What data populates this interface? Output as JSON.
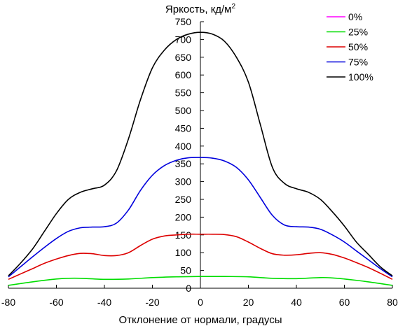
{
  "chart_data": {
    "type": "line",
    "ylabel_main": "Яркость, кд/м",
    "ylabel_sup": "2",
    "xlabel": "Отклонение от нормали, градусы",
    "xlim": [
      -80,
      80
    ],
    "ylim": [
      0,
      750
    ],
    "xticks": [
      -80,
      -60,
      -40,
      -20,
      0,
      20,
      40,
      60,
      80
    ],
    "yticks": [
      0,
      50,
      100,
      150,
      200,
      250,
      300,
      350,
      400,
      450,
      500,
      550,
      600,
      650,
      700,
      750
    ],
    "grid": false,
    "legend_position": "top-right",
    "series": [
      {
        "name": "0%",
        "color": "#ff00ff",
        "x": [
          -80,
          80
        ],
        "y": [
          0,
          0
        ]
      },
      {
        "name": "25%",
        "color": "#00dd00",
        "x": [
          -80,
          -70,
          -60,
          -55,
          -50,
          -40,
          -30,
          -20,
          -10,
          0,
          10,
          20,
          30,
          40,
          50,
          55,
          60,
          70,
          80
        ],
        "y": [
          8,
          18,
          26,
          28,
          28,
          25,
          26,
          30,
          32,
          33,
          33,
          32,
          28,
          27,
          30,
          29,
          26,
          18,
          8
        ]
      },
      {
        "name": "50%",
        "color": "#dd0000",
        "x": [
          -80,
          -75,
          -70,
          -65,
          -60,
          -55,
          -50,
          -45,
          -40,
          -35,
          -30,
          -25,
          -20,
          -15,
          -10,
          -5,
          0,
          5,
          10,
          15,
          20,
          25,
          30,
          35,
          40,
          45,
          50,
          55,
          60,
          65,
          70,
          75,
          80
        ],
        "y": [
          25,
          40,
          55,
          70,
          82,
          92,
          98,
          97,
          92,
          92,
          100,
          120,
          138,
          147,
          150,
          152,
          152,
          152,
          151,
          145,
          130,
          112,
          97,
          93,
          94,
          98,
          100,
          95,
          85,
          72,
          58,
          42,
          25
        ]
      },
      {
        "name": "75%",
        "color": "#0000dd",
        "x": [
          -80,
          -75,
          -70,
          -65,
          -60,
          -55,
          -50,
          -45,
          -40,
          -35,
          -30,
          -25,
          -20,
          -15,
          -10,
          -5,
          0,
          5,
          10,
          15,
          20,
          25,
          30,
          35,
          40,
          45,
          50,
          55,
          60,
          65,
          70,
          75,
          80
        ],
        "y": [
          32,
          60,
          88,
          115,
          140,
          160,
          170,
          172,
          173,
          183,
          220,
          275,
          318,
          345,
          360,
          367,
          368,
          366,
          358,
          340,
          305,
          255,
          205,
          178,
          173,
          172,
          166,
          150,
          130,
          105,
          80,
          55,
          32
        ]
      },
      {
        "name": "100%",
        "color": "#000000",
        "x": [
          -80,
          -75,
          -70,
          -65,
          -60,
          -55,
          -50,
          -45,
          -40,
          -35,
          -30,
          -25,
          -20,
          -15,
          -10,
          -5,
          0,
          5,
          10,
          15,
          20,
          25,
          30,
          35,
          40,
          45,
          50,
          55,
          60,
          65,
          70,
          75,
          80
        ],
        "y": [
          35,
          70,
          110,
          160,
          210,
          250,
          270,
          280,
          290,
          330,
          420,
          530,
          620,
          670,
          700,
          715,
          720,
          715,
          695,
          650,
          580,
          460,
          340,
          295,
          280,
          270,
          250,
          215,
          175,
          130,
          95,
          60,
          35
        ]
      }
    ]
  }
}
